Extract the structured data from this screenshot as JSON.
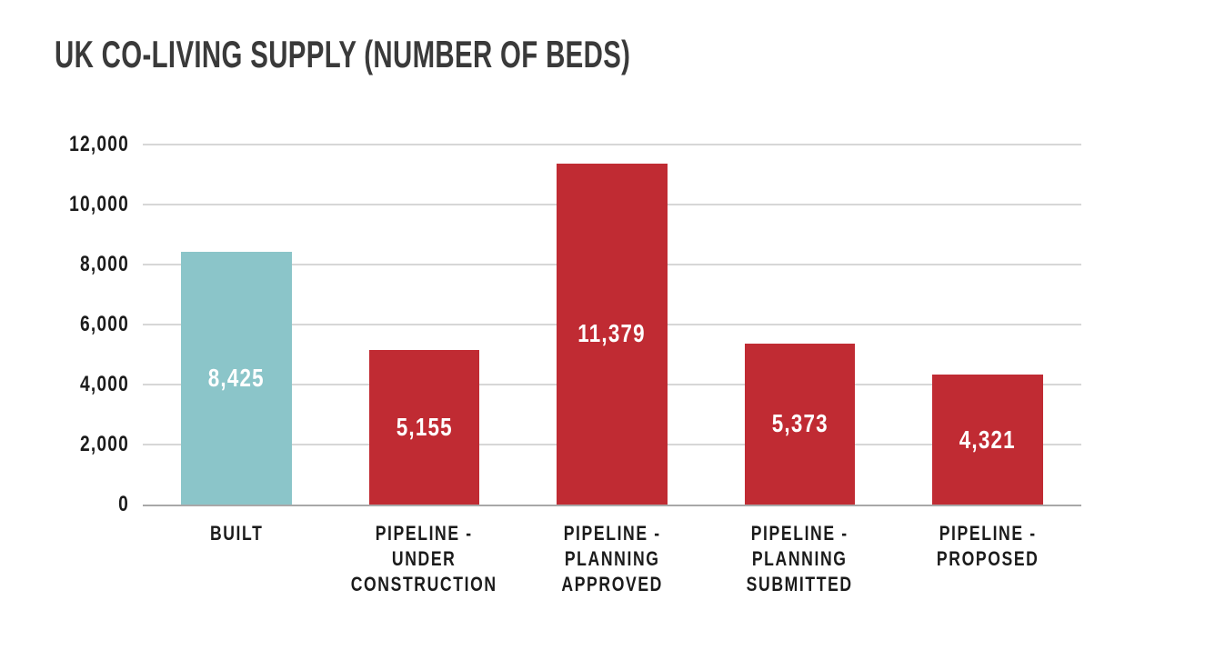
{
  "title": "UK CO-LIVING SUPPLY (NUMBER OF BEDS)",
  "chart_data": {
    "type": "bar",
    "title": "UK CO-LIVING SUPPLY (NUMBER OF BEDS)",
    "categories": [
      "BUILT",
      "PIPELINE - UNDER CONSTRUCTION",
      "PIPELINE - PLANNING APPROVED",
      "PIPELINE - PLANNING SUBMITTED",
      "PIPELINE - PROPOSED"
    ],
    "category_lines": [
      [
        "BUILT"
      ],
      [
        "PIPELINE -",
        "UNDER",
        "CONSTRUCTION"
      ],
      [
        "PIPELINE -",
        "PLANNING",
        "APPROVED"
      ],
      [
        "PIPELINE -",
        "PLANNING",
        "SUBMITTED"
      ],
      [
        "PIPELINE -",
        "PROPOSED"
      ]
    ],
    "values": [
      8425,
      5155,
      11379,
      5373,
      4321
    ],
    "value_labels": [
      "8,425",
      "5,155",
      "11,379",
      "5,373",
      "4,321"
    ],
    "bar_colors": [
      "#8BC5C9",
      "#C02B33",
      "#C02B33",
      "#C02B33",
      "#C02B33"
    ],
    "xlabel": "",
    "ylabel": "",
    "ylim": [
      0,
      12000
    ],
    "yticks": [
      0,
      2000,
      4000,
      6000,
      8000,
      10000,
      12000
    ],
    "ytick_labels": [
      "0",
      "2,000",
      "4,000",
      "6,000",
      "8,000",
      "10,000",
      "12,000"
    ],
    "grid": "horizontal gridlines on",
    "legend_position": "none",
    "value_label_position": "inside-center",
    "value_label_color": "#FFFFFF"
  },
  "colors": {
    "background": "#FFFFFF",
    "bar_teal": "#8BC5C9",
    "bar_red": "#C02B33",
    "title_text": "#3A3A3A",
    "axis_label_text": "#1B1B1B",
    "value_text": "#FFFFFF",
    "gridline": "#D7D7D7",
    "baseline": "#A8A8A8"
  }
}
